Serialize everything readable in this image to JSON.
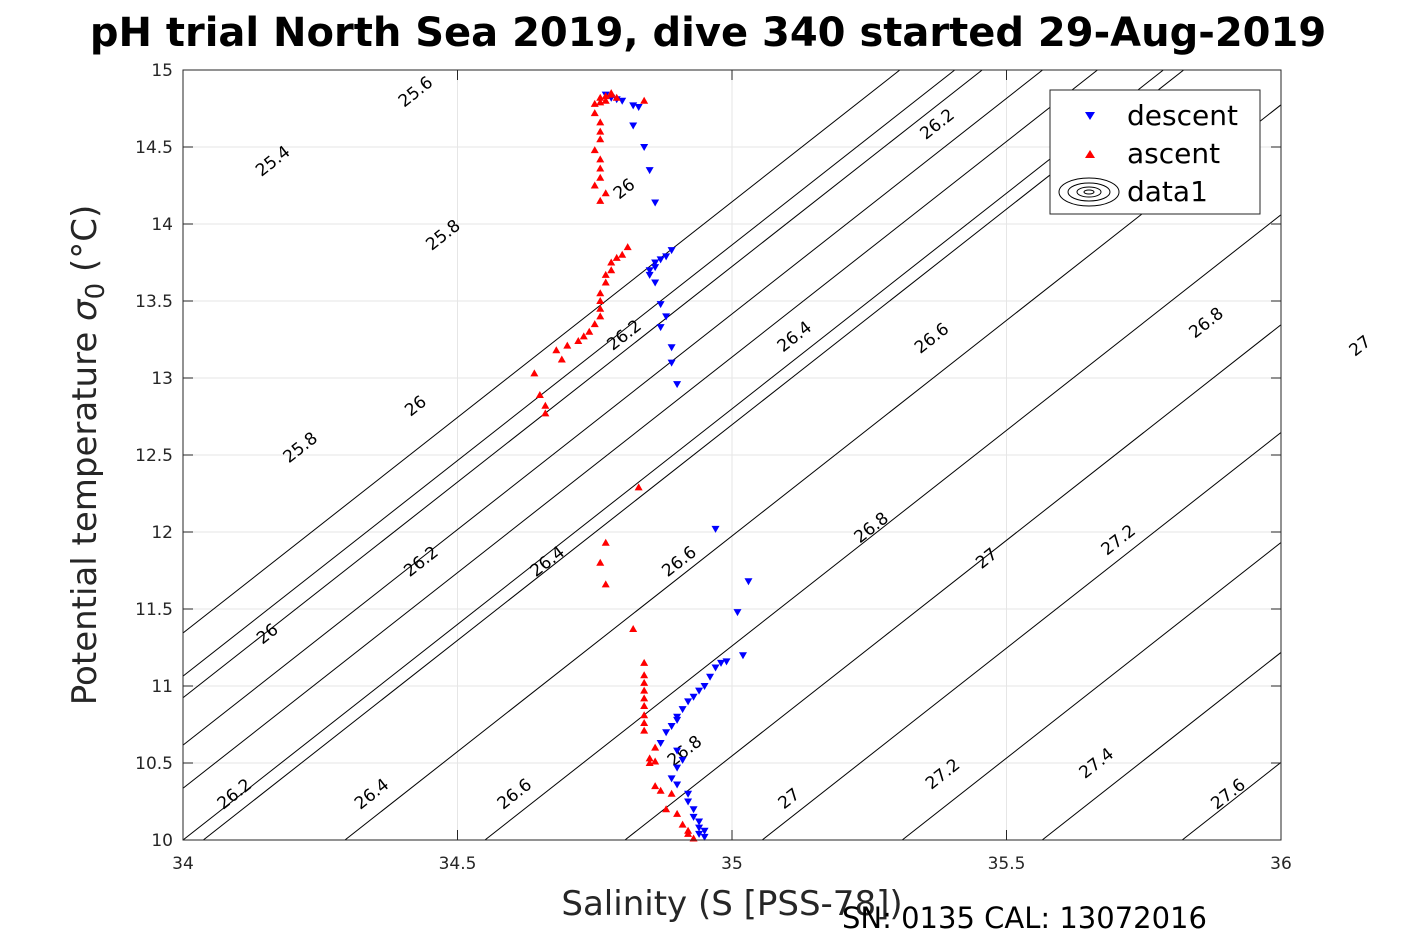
{
  "chart_data": {
    "type": "scatter",
    "title": "pH trial North Sea 2019, dive 340 started 29-Aug-2019",
    "xlabel": "Salinity (S [PSS-78])",
    "ylabel": "Potential temperature σ₀ (°C)",
    "ylabel_main": "Potential temperature ",
    "ylabel_sigma": "σ",
    "ylabel_sub": "0",
    "ylabel_unit": " (°C)",
    "xlim": [
      34,
      36
    ],
    "ylim": [
      10,
      15
    ],
    "xticks": [
      "34",
      "34.5",
      "35",
      "35.5",
      "36"
    ],
    "yticks": [
      "10",
      "10.5",
      "11",
      "11.5",
      "12",
      "12.5",
      "13",
      "13.5",
      "14",
      "14.5",
      "15"
    ],
    "grid": true,
    "legend_position": "top-right",
    "footnote": "SN: 0135  CAL: 13072016",
    "series": [
      {
        "name": "descent",
        "marker": "triangle-down",
        "color": "#0000ff",
        "points": [
          [
            34.77,
            14.84
          ],
          [
            34.78,
            14.82
          ],
          [
            34.79,
            14.81
          ],
          [
            34.8,
            14.8
          ],
          [
            34.82,
            14.77
          ],
          [
            34.83,
            14.76
          ],
          [
            34.82,
            14.64
          ],
          [
            34.84,
            14.5
          ],
          [
            34.85,
            14.35
          ],
          [
            34.86,
            14.14
          ],
          [
            34.85,
            13.7
          ],
          [
            34.85,
            13.67
          ],
          [
            34.86,
            13.72
          ],
          [
            34.86,
            13.75
          ],
          [
            34.87,
            13.77
          ],
          [
            34.88,
            13.79
          ],
          [
            34.89,
            13.83
          ],
          [
            34.86,
            13.62
          ],
          [
            34.87,
            13.48
          ],
          [
            34.88,
            13.4
          ],
          [
            34.87,
            13.33
          ],
          [
            34.89,
            13.2
          ],
          [
            34.89,
            13.1
          ],
          [
            34.9,
            12.96
          ],
          [
            34.97,
            12.02
          ],
          [
            35.03,
            11.68
          ],
          [
            35.01,
            11.48
          ],
          [
            35.02,
            11.2
          ],
          [
            34.99,
            11.16
          ],
          [
            34.98,
            11.15
          ],
          [
            34.97,
            11.12
          ],
          [
            34.96,
            11.06
          ],
          [
            34.95,
            11.0
          ],
          [
            34.94,
            10.97
          ],
          [
            34.93,
            10.93
          ],
          [
            34.92,
            10.9
          ],
          [
            34.91,
            10.85
          ],
          [
            34.9,
            10.8
          ],
          [
            34.9,
            10.78
          ],
          [
            34.89,
            10.74
          ],
          [
            34.88,
            10.7
          ],
          [
            34.87,
            10.63
          ],
          [
            34.9,
            10.58
          ],
          [
            34.91,
            10.52
          ],
          [
            34.9,
            10.47
          ],
          [
            34.89,
            10.4
          ],
          [
            34.9,
            10.36
          ],
          [
            34.92,
            10.3
          ],
          [
            34.92,
            10.25
          ],
          [
            34.93,
            10.2
          ],
          [
            34.93,
            10.15
          ],
          [
            34.94,
            10.12
          ],
          [
            34.94,
            10.08
          ],
          [
            34.95,
            10.06
          ],
          [
            34.94,
            10.04
          ],
          [
            34.95,
            10.02
          ]
        ]
      },
      {
        "name": "ascent",
        "marker": "triangle-up",
        "color": "#ff0000",
        "points": [
          [
            34.75,
            14.78
          ],
          [
            34.75,
            14.72
          ],
          [
            34.76,
            14.66
          ],
          [
            34.76,
            14.6
          ],
          [
            34.76,
            14.55
          ],
          [
            34.75,
            14.48
          ],
          [
            34.76,
            14.42
          ],
          [
            34.76,
            14.36
          ],
          [
            34.76,
            14.3
          ],
          [
            34.75,
            14.25
          ],
          [
            34.77,
            14.2
          ],
          [
            34.76,
            14.15
          ],
          [
            34.76,
            14.82
          ],
          [
            34.77,
            14.83
          ],
          [
            34.78,
            14.85
          ],
          [
            34.78,
            14.84
          ],
          [
            34.77,
            14.8
          ],
          [
            34.79,
            14.82
          ],
          [
            34.76,
            14.79
          ],
          [
            34.84,
            14.8
          ],
          [
            34.81,
            13.85
          ],
          [
            34.8,
            13.8
          ],
          [
            34.79,
            13.78
          ],
          [
            34.78,
            13.75
          ],
          [
            34.78,
            13.7
          ],
          [
            34.77,
            13.67
          ],
          [
            34.77,
            13.62
          ],
          [
            34.76,
            13.55
          ],
          [
            34.76,
            13.5
          ],
          [
            34.76,
            13.45
          ],
          [
            34.76,
            13.4
          ],
          [
            34.75,
            13.35
          ],
          [
            34.74,
            13.3
          ],
          [
            34.73,
            13.27
          ],
          [
            34.72,
            13.24
          ],
          [
            34.7,
            13.21
          ],
          [
            34.68,
            13.18
          ],
          [
            34.69,
            13.12
          ],
          [
            34.64,
            13.03
          ],
          [
            34.65,
            12.89
          ],
          [
            34.66,
            12.82
          ],
          [
            34.66,
            12.77
          ],
          [
            34.83,
            12.29
          ],
          [
            34.77,
            11.93
          ],
          [
            34.76,
            11.8
          ],
          [
            34.77,
            11.66
          ],
          [
            34.82,
            11.37
          ],
          [
            34.84,
            11.15
          ],
          [
            34.84,
            11.07
          ],
          [
            34.84,
            11.02
          ],
          [
            34.84,
            10.97
          ],
          [
            34.84,
            10.92
          ],
          [
            34.84,
            10.87
          ],
          [
            34.84,
            10.81
          ],
          [
            34.84,
            10.76
          ],
          [
            34.84,
            10.71
          ],
          [
            34.86,
            10.6
          ],
          [
            34.85,
            10.53
          ],
          [
            34.86,
            10.51
          ],
          [
            34.85,
            10.5
          ],
          [
            34.86,
            10.35
          ],
          [
            34.87,
            10.32
          ],
          [
            34.89,
            10.3
          ],
          [
            34.88,
            10.2
          ],
          [
            34.9,
            10.17
          ],
          [
            34.91,
            10.1
          ],
          [
            34.92,
            10.06
          ],
          [
            34.92,
            10.04
          ],
          [
            34.93,
            10.01
          ]
        ]
      }
    ],
    "contours": {
      "legend_name": "data1",
      "slope_degC_per_psu": 2.8,
      "lines": [
        {
          "level": "26.2",
          "intercept_S": 34.037
        },
        {
          "level": "26.4",
          "intercept_S": 34.295
        },
        {
          "level": "26.6",
          "intercept_S": 34.55
        },
        {
          "level": "26.8",
          "intercept_S": 34.805
        },
        {
          "level": "27",
          "intercept_S": 35.055
        },
        {
          "level": "27.2",
          "intercept_S": 35.31
        },
        {
          "level": "27.4",
          "intercept_S": 35.565
        },
        {
          "level": "27.6",
          "intercept_S": 35.82
        }
      ],
      "labels": [
        {
          "text": "25.4",
          "S": 34.17,
          "T": 14.38
        },
        {
          "text": "25.6",
          "S": 34.43,
          "T": 14.83
        },
        {
          "text": "26",
          "S": 34.81,
          "T": 14.2
        },
        {
          "text": "26.2",
          "S": 35.38,
          "T": 14.62
        },
        {
          "text": "26.4",
          "S": 35.88,
          "T": 14.62
        },
        {
          "text": "25.8",
          "S": 34.48,
          "T": 13.9
        },
        {
          "text": "26.2",
          "S": 34.81,
          "T": 13.25
        },
        {
          "text": "26.4",
          "S": 35.12,
          "T": 13.24
        },
        {
          "text": "26.6",
          "S": 35.37,
          "T": 13.23
        },
        {
          "text": "26.8",
          "S": 35.87,
          "T": 13.33
        },
        {
          "text": "27",
          "S": 36.15,
          "T": 13.18
        },
        {
          "text": "25.8",
          "S": 34.22,
          "T": 12.52
        },
        {
          "text": "26",
          "S": 34.43,
          "T": 12.79
        },
        {
          "text": "26.2",
          "S": 34.44,
          "T": 11.78
        },
        {
          "text": "26.4",
          "S": 34.67,
          "T": 11.78
        },
        {
          "text": "26.6",
          "S": 34.91,
          "T": 11.78
        },
        {
          "text": "26.8",
          "S": 35.26,
          "T": 12.0
        },
        {
          "text": "27",
          "S": 35.47,
          "T": 11.8
        },
        {
          "text": "27.2",
          "S": 35.71,
          "T": 11.92
        },
        {
          "text": "26",
          "S": 34.16,
          "T": 11.31
        },
        {
          "text": "26.2",
          "S": 34.1,
          "T": 10.27
        },
        {
          "text": "26.4",
          "S": 34.35,
          "T": 10.27
        },
        {
          "text": "26.6",
          "S": 34.61,
          "T": 10.27
        },
        {
          "text": "26.8",
          "S": 34.92,
          "T": 10.55
        },
        {
          "text": "27",
          "S": 35.11,
          "T": 10.24
        },
        {
          "text": "27.2",
          "S": 35.39,
          "T": 10.4
        },
        {
          "text": "27.4",
          "S": 35.67,
          "T": 10.47
        },
        {
          "text": "27.6",
          "S": 35.91,
          "T": 10.27
        }
      ]
    }
  }
}
